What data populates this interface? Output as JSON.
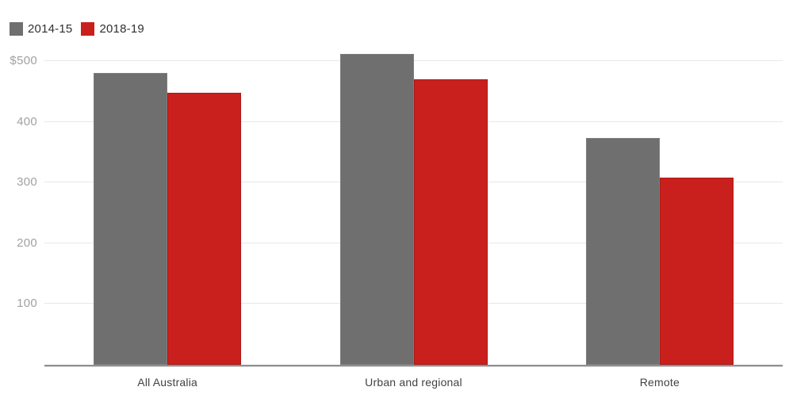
{
  "chart_data": {
    "type": "bar",
    "categories": [
      "All Australia",
      "Urban and regional",
      "Remote"
    ],
    "series": [
      {
        "name": "2014-15",
        "color": "#6f6f6f",
        "values": [
          480,
          512,
          373
        ]
      },
      {
        "name": "2018-19",
        "color": "#c9201d",
        "values": [
          448,
          470,
          308
        ]
      }
    ],
    "ylim": [
      0,
      500
    ],
    "yticks": [
      100,
      200,
      300,
      400,
      500
    ],
    "ytick_labels": [
      "100",
      "200",
      "300",
      "400",
      "$500"
    ],
    "grid": true,
    "legend_position": "top-left",
    "colors": {
      "grid": "#e8e8e8",
      "axis": "#8f8f8f",
      "ytick_text": "#a1a1a1",
      "xtick_text": "#424242",
      "legend_text": "#303030",
      "background": "#ffffff"
    }
  }
}
